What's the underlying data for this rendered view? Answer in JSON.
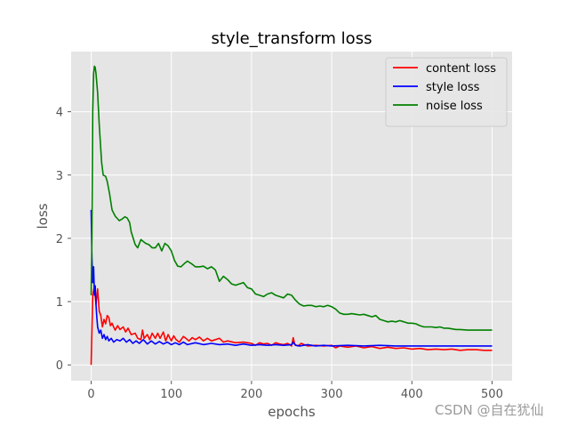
{
  "chart_data": {
    "type": "line",
    "title": "style_transform loss",
    "xlabel": "epochs",
    "ylabel": "loss",
    "xlim": [
      -25,
      525
    ],
    "ylim": [
      -0.25,
      4.95
    ],
    "xticks": [
      0,
      100,
      200,
      300,
      400,
      500
    ],
    "yticks": [
      0,
      1,
      2,
      3,
      4
    ],
    "grid": true,
    "legend_position": "top-right",
    "series": [
      {
        "name": "content loss",
        "color": "#ff0000",
        "points": [
          [
            0,
            0.0
          ],
          [
            2,
            1.1
          ],
          [
            4,
            1.25
          ],
          [
            6,
            0.95
          ],
          [
            8,
            1.2
          ],
          [
            10,
            0.85
          ],
          [
            12,
            0.78
          ],
          [
            14,
            0.6
          ],
          [
            16,
            0.72
          ],
          [
            18,
            0.65
          ],
          [
            20,
            0.78
          ],
          [
            22,
            0.75
          ],
          [
            24,
            0.62
          ],
          [
            26,
            0.66
          ],
          [
            28,
            0.6
          ],
          [
            30,
            0.55
          ],
          [
            33,
            0.62
          ],
          [
            36,
            0.56
          ],
          [
            40,
            0.6
          ],
          [
            43,
            0.52
          ],
          [
            46,
            0.58
          ],
          [
            50,
            0.48
          ],
          [
            55,
            0.5
          ],
          [
            58,
            0.42
          ],
          [
            62,
            0.4
          ],
          [
            64,
            0.55
          ],
          [
            66,
            0.42
          ],
          [
            70,
            0.48
          ],
          [
            73,
            0.4
          ],
          [
            76,
            0.5
          ],
          [
            80,
            0.42
          ],
          [
            83,
            0.5
          ],
          [
            86,
            0.42
          ],
          [
            90,
            0.52
          ],
          [
            93,
            0.38
          ],
          [
            96,
            0.48
          ],
          [
            100,
            0.38
          ],
          [
            103,
            0.46
          ],
          [
            106,
            0.4
          ],
          [
            110,
            0.36
          ],
          [
            115,
            0.45
          ],
          [
            118,
            0.42
          ],
          [
            122,
            0.38
          ],
          [
            126,
            0.43
          ],
          [
            130,
            0.4
          ],
          [
            135,
            0.44
          ],
          [
            140,
            0.38
          ],
          [
            145,
            0.42
          ],
          [
            150,
            0.38
          ],
          [
            155,
            0.4
          ],
          [
            160,
            0.42
          ],
          [
            165,
            0.36
          ],
          [
            170,
            0.38
          ],
          [
            180,
            0.35
          ],
          [
            190,
            0.36
          ],
          [
            200,
            0.34
          ],
          [
            205,
            0.31
          ],
          [
            210,
            0.35
          ],
          [
            215,
            0.33
          ],
          [
            220,
            0.34
          ],
          [
            225,
            0.31
          ],
          [
            230,
            0.35
          ],
          [
            235,
            0.33
          ],
          [
            240,
            0.32
          ],
          [
            245,
            0.34
          ],
          [
            250,
            0.3
          ],
          [
            252,
            0.43
          ],
          [
            254,
            0.32
          ],
          [
            258,
            0.3
          ],
          [
            262,
            0.34
          ],
          [
            270,
            0.3
          ],
          [
            280,
            0.31
          ],
          [
            290,
            0.3
          ],
          [
            300,
            0.31
          ],
          [
            305,
            0.27
          ],
          [
            310,
            0.3
          ],
          [
            320,
            0.28
          ],
          [
            330,
            0.3
          ],
          [
            340,
            0.27
          ],
          [
            350,
            0.29
          ],
          [
            360,
            0.26
          ],
          [
            370,
            0.28
          ],
          [
            380,
            0.26
          ],
          [
            390,
            0.27
          ],
          [
            400,
            0.25
          ],
          [
            410,
            0.26
          ],
          [
            420,
            0.24
          ],
          [
            430,
            0.25
          ],
          [
            440,
            0.24
          ],
          [
            450,
            0.25
          ],
          [
            460,
            0.23
          ],
          [
            470,
            0.24
          ],
          [
            480,
            0.24
          ],
          [
            490,
            0.23
          ],
          [
            500,
            0.23
          ]
        ]
      },
      {
        "name": "style loss",
        "color": "#0000ff",
        "points": [
          [
            0,
            2.45
          ],
          [
            1,
            1.7
          ],
          [
            2,
            1.3
          ],
          [
            3,
            1.55
          ],
          [
            4,
            1.1
          ],
          [
            5,
            1.25
          ],
          [
            6,
            0.95
          ],
          [
            7,
            0.75
          ],
          [
            8,
            0.6
          ],
          [
            10,
            0.5
          ],
          [
            12,
            0.55
          ],
          [
            14,
            0.42
          ],
          [
            16,
            0.48
          ],
          [
            18,
            0.4
          ],
          [
            20,
            0.45
          ],
          [
            22,
            0.38
          ],
          [
            25,
            0.42
          ],
          [
            28,
            0.36
          ],
          [
            32,
            0.4
          ],
          [
            36,
            0.38
          ],
          [
            40,
            0.42
          ],
          [
            44,
            0.36
          ],
          [
            48,
            0.4
          ],
          [
            52,
            0.34
          ],
          [
            56,
            0.38
          ],
          [
            60,
            0.34
          ],
          [
            65,
            0.4
          ],
          [
            70,
            0.33
          ],
          [
            75,
            0.38
          ],
          [
            80,
            0.33
          ],
          [
            85,
            0.37
          ],
          [
            90,
            0.33
          ],
          [
            95,
            0.36
          ],
          [
            100,
            0.32
          ],
          [
            105,
            0.35
          ],
          [
            110,
            0.32
          ],
          [
            115,
            0.36
          ],
          [
            120,
            0.32
          ],
          [
            130,
            0.35
          ],
          [
            140,
            0.32
          ],
          [
            150,
            0.34
          ],
          [
            160,
            0.32
          ],
          [
            170,
            0.33
          ],
          [
            180,
            0.31
          ],
          [
            190,
            0.33
          ],
          [
            200,
            0.31
          ],
          [
            210,
            0.32
          ],
          [
            220,
            0.31
          ],
          [
            230,
            0.32
          ],
          [
            240,
            0.31
          ],
          [
            250,
            0.32
          ],
          [
            252,
            0.36
          ],
          [
            255,
            0.31
          ],
          [
            260,
            0.3
          ],
          [
            270,
            0.32
          ],
          [
            280,
            0.3
          ],
          [
            290,
            0.31
          ],
          [
            300,
            0.3
          ],
          [
            320,
            0.31
          ],
          [
            340,
            0.3
          ],
          [
            360,
            0.31
          ],
          [
            380,
            0.3
          ],
          [
            400,
            0.3
          ],
          [
            420,
            0.3
          ],
          [
            440,
            0.3
          ],
          [
            460,
            0.3
          ],
          [
            480,
            0.3
          ],
          [
            500,
            0.3
          ]
        ]
      },
      {
        "name": "noise loss",
        "color": "#008000",
        "points": [
          [
            0,
            1.1
          ],
          [
            1,
            2.0
          ],
          [
            2,
            4.0
          ],
          [
            3,
            4.6
          ],
          [
            4,
            4.72
          ],
          [
            5,
            4.7
          ],
          [
            6,
            4.6
          ],
          [
            8,
            4.3
          ],
          [
            10,
            3.8
          ],
          [
            13,
            3.2
          ],
          [
            15,
            3.0
          ],
          [
            18,
            2.98
          ],
          [
            20,
            2.9
          ],
          [
            23,
            2.7
          ],
          [
            26,
            2.45
          ],
          [
            30,
            2.35
          ],
          [
            35,
            2.28
          ],
          [
            38,
            2.3
          ],
          [
            42,
            2.34
          ],
          [
            45,
            2.32
          ],
          [
            48,
            2.25
          ],
          [
            50,
            2.1
          ],
          [
            55,
            1.9
          ],
          [
            58,
            1.85
          ],
          [
            62,
            1.98
          ],
          [
            65,
            1.95
          ],
          [
            68,
            1.92
          ],
          [
            72,
            1.9
          ],
          [
            76,
            1.85
          ],
          [
            80,
            1.85
          ],
          [
            84,
            1.92
          ],
          [
            88,
            1.8
          ],
          [
            92,
            1.92
          ],
          [
            96,
            1.88
          ],
          [
            100,
            1.8
          ],
          [
            104,
            1.65
          ],
          [
            108,
            1.56
          ],
          [
            112,
            1.55
          ],
          [
            116,
            1.6
          ],
          [
            120,
            1.64
          ],
          [
            125,
            1.6
          ],
          [
            130,
            1.55
          ],
          [
            135,
            1.55
          ],
          [
            140,
            1.56
          ],
          [
            145,
            1.52
          ],
          [
            150,
            1.55
          ],
          [
            155,
            1.5
          ],
          [
            160,
            1.32
          ],
          [
            165,
            1.4
          ],
          [
            170,
            1.35
          ],
          [
            175,
            1.28
          ],
          [
            180,
            1.26
          ],
          [
            185,
            1.28
          ],
          [
            190,
            1.3
          ],
          [
            195,
            1.22
          ],
          [
            200,
            1.2
          ],
          [
            205,
            1.12
          ],
          [
            210,
            1.1
          ],
          [
            215,
            1.08
          ],
          [
            220,
            1.12
          ],
          [
            225,
            1.14
          ],
          [
            230,
            1.1
          ],
          [
            235,
            1.08
          ],
          [
            240,
            1.06
          ],
          [
            245,
            1.12
          ],
          [
            250,
            1.1
          ],
          [
            255,
            1.02
          ],
          [
            260,
            0.96
          ],
          [
            265,
            0.93
          ],
          [
            270,
            0.94
          ],
          [
            275,
            0.94
          ],
          [
            280,
            0.92
          ],
          [
            285,
            0.93
          ],
          [
            290,
            0.92
          ],
          [
            295,
            0.94
          ],
          [
            300,
            0.92
          ],
          [
            305,
            0.88
          ],
          [
            310,
            0.82
          ],
          [
            315,
            0.8
          ],
          [
            320,
            0.8
          ],
          [
            325,
            0.81
          ],
          [
            330,
            0.8
          ],
          [
            335,
            0.79
          ],
          [
            340,
            0.8
          ],
          [
            345,
            0.78
          ],
          [
            350,
            0.76
          ],
          [
            355,
            0.78
          ],
          [
            360,
            0.72
          ],
          [
            365,
            0.7
          ],
          [
            370,
            0.68
          ],
          [
            375,
            0.69
          ],
          [
            380,
            0.68
          ],
          [
            385,
            0.7
          ],
          [
            390,
            0.68
          ],
          [
            395,
            0.66
          ],
          [
            400,
            0.66
          ],
          [
            405,
            0.65
          ],
          [
            410,
            0.62
          ],
          [
            415,
            0.6
          ],
          [
            420,
            0.6
          ],
          [
            425,
            0.6
          ],
          [
            430,
            0.59
          ],
          [
            435,
            0.6
          ],
          [
            440,
            0.58
          ],
          [
            445,
            0.58
          ],
          [
            450,
            0.57
          ],
          [
            455,
            0.56
          ],
          [
            460,
            0.56
          ],
          [
            470,
            0.55
          ],
          [
            480,
            0.55
          ],
          [
            490,
            0.55
          ],
          [
            500,
            0.55
          ]
        ]
      }
    ]
  },
  "watermark": "CSDN @自在犹仙"
}
